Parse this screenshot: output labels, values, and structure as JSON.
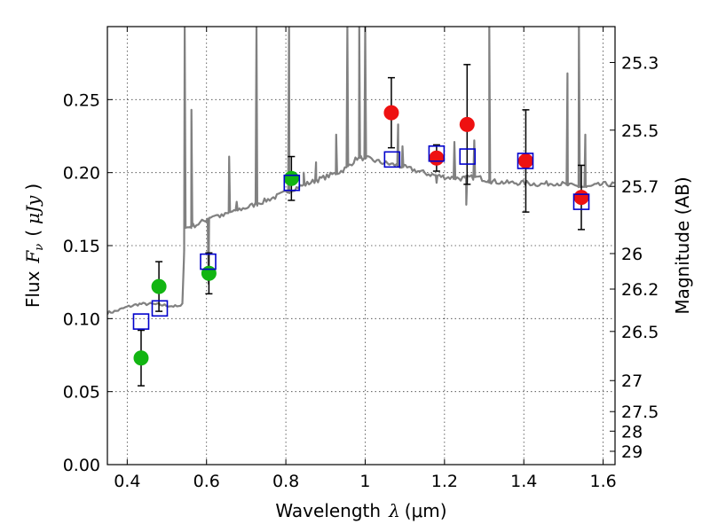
{
  "chart_data": {
    "type": "scatter",
    "title": "",
    "xlabel_text": "Wavelength",
    "xlabel_math": "λ",
    "xlabel_unit": "(μm)",
    "ylabel_text": "Flux",
    "ylabel_math": "F",
    "ylabel_math_sub": "ν",
    "ylabel_unit": "μJy",
    "y2label": "Magnitude (AB)",
    "xlim": [
      0.35,
      1.63
    ],
    "ylim": [
      0.0,
      0.3
    ],
    "grid": true,
    "x_ticks": [
      {
        "v": 0.4,
        "label": "0.4"
      },
      {
        "v": 0.6,
        "label": "0.6"
      },
      {
        "v": 0.8,
        "label": "0.8"
      },
      {
        "v": 1.0,
        "label": "1"
      },
      {
        "v": 1.2,
        "label": "1.2"
      },
      {
        "v": 1.4,
        "label": "1.4"
      },
      {
        "v": 1.6,
        "label": "1.6"
      }
    ],
    "y_ticks": [
      {
        "v": 0.0,
        "label": "0.00"
      },
      {
        "v": 0.05,
        "label": "0.05"
      },
      {
        "v": 0.1,
        "label": "0.10"
      },
      {
        "v": 0.15,
        "label": "0.15"
      },
      {
        "v": 0.2,
        "label": "0.20"
      },
      {
        "v": 0.25,
        "label": "0.25"
      }
    ],
    "mag_ticks": [
      {
        "mag": 25.3,
        "label": "25.3"
      },
      {
        "mag": 25.5,
        "label": "25.5"
      },
      {
        "mag": 25.7,
        "label": "25.7"
      },
      {
        "mag": 26.0,
        "label": "26"
      },
      {
        "mag": 26.2,
        "label": "26.2"
      },
      {
        "mag": 26.5,
        "label": "26.5"
      },
      {
        "mag": 27.0,
        "label": "27"
      },
      {
        "mag": 27.5,
        "label": "27.5"
      },
      {
        "mag": 28.0,
        "label": "28"
      },
      {
        "mag": 29.0,
        "label": "29"
      }
    ],
    "sed_model": {
      "color": "#808080",
      "continuum": [
        [
          0.35,
          0.104
        ],
        [
          0.37,
          0.105
        ],
        [
          0.4,
          0.108
        ],
        [
          0.43,
          0.11
        ],
        [
          0.46,
          0.11
        ],
        [
          0.5,
          0.109
        ],
        [
          0.535,
          0.108
        ],
        [
          0.54,
          0.112
        ],
        [
          0.545,
          0.162
        ],
        [
          0.56,
          0.163
        ],
        [
          0.58,
          0.165
        ],
        [
          0.6,
          0.168
        ],
        [
          0.62,
          0.171
        ],
        [
          0.64,
          0.17
        ],
        [
          0.66,
          0.173
        ],
        [
          0.7,
          0.176
        ],
        [
          0.74,
          0.18
        ],
        [
          0.78,
          0.184
        ],
        [
          0.82,
          0.189
        ],
        [
          0.86,
          0.193
        ],
        [
          0.9,
          0.197
        ],
        [
          0.94,
          0.201
        ],
        [
          0.96,
          0.205
        ],
        [
          0.98,
          0.21
        ],
        [
          1.0,
          0.21
        ],
        [
          1.04,
          0.207
        ],
        [
          1.08,
          0.205
        ],
        [
          1.12,
          0.202
        ],
        [
          1.16,
          0.199
        ],
        [
          1.2,
          0.197
        ],
        [
          1.24,
          0.196
        ],
        [
          1.28,
          0.197
        ],
        [
          1.32,
          0.194
        ],
        [
          1.36,
          0.193
        ],
        [
          1.4,
          0.193
        ],
        [
          1.44,
          0.192
        ],
        [
          1.48,
          0.193
        ],
        [
          1.52,
          0.191
        ],
        [
          1.56,
          0.19
        ],
        [
          1.6,
          0.192
        ],
        [
          1.63,
          0.192
        ]
      ],
      "lines": [
        [
          0.545,
          0.3
        ],
        [
          0.562,
          0.243
        ],
        [
          0.657,
          0.211
        ],
        [
          0.676,
          0.18
        ],
        [
          0.726,
          0.3
        ],
        [
          0.808,
          0.3
        ],
        [
          0.845,
          0.2
        ],
        [
          0.876,
          0.207
        ],
        [
          0.927,
          0.226
        ],
        [
          0.955,
          0.3
        ],
        [
          0.985,
          0.3
        ],
        [
          1.0,
          0.3
        ],
        [
          1.083,
          0.233
        ],
        [
          1.094,
          0.218
        ],
        [
          1.225,
          0.221
        ],
        [
          1.275,
          0.222
        ],
        [
          1.313,
          0.3
        ],
        [
          1.51,
          0.268
        ],
        [
          1.539,
          0.3
        ],
        [
          1.555,
          0.226
        ]
      ],
      "dips": [
        [
          0.605,
          0.124
        ],
        [
          1.18,
          0.193
        ],
        [
          1.255,
          0.178
        ]
      ]
    },
    "series": [
      {
        "marker": "circle",
        "color": "#12b512",
        "points": [
          {
            "x": 0.435,
            "y": 0.073,
            "err": 0.019
          },
          {
            "x": 0.48,
            "y": 0.122,
            "err": 0.017
          },
          {
            "x": 0.606,
            "y": 0.131,
            "err": 0.014
          },
          {
            "x": 0.814,
            "y": 0.196,
            "err": 0.015
          }
        ]
      },
      {
        "marker": "circle",
        "color": "#ee1111",
        "points": [
          {
            "x": 1.066,
            "y": 0.241,
            "err": 0.024
          },
          {
            "x": 1.18,
            "y": 0.21,
            "err": 0.009
          },
          {
            "x": 1.257,
            "y": 0.233,
            "err": 0.041
          },
          {
            "x": 1.405,
            "y": 0.208,
            "err": 0.035
          },
          {
            "x": 1.545,
            "y": 0.183,
            "err": 0.022
          }
        ]
      },
      {
        "marker": "open-square",
        "color": "#0000cc",
        "points": [
          {
            "x": 0.435,
            "y": 0.098
          },
          {
            "x": 0.482,
            "y": 0.107
          },
          {
            "x": 0.604,
            "y": 0.139
          },
          {
            "x": 0.815,
            "y": 0.193
          },
          {
            "x": 1.068,
            "y": 0.209
          },
          {
            "x": 1.18,
            "y": 0.213
          },
          {
            "x": 1.258,
            "y": 0.211
          },
          {
            "x": 1.404,
            "y": 0.208
          },
          {
            "x": 1.545,
            "y": 0.18
          }
        ]
      }
    ]
  }
}
